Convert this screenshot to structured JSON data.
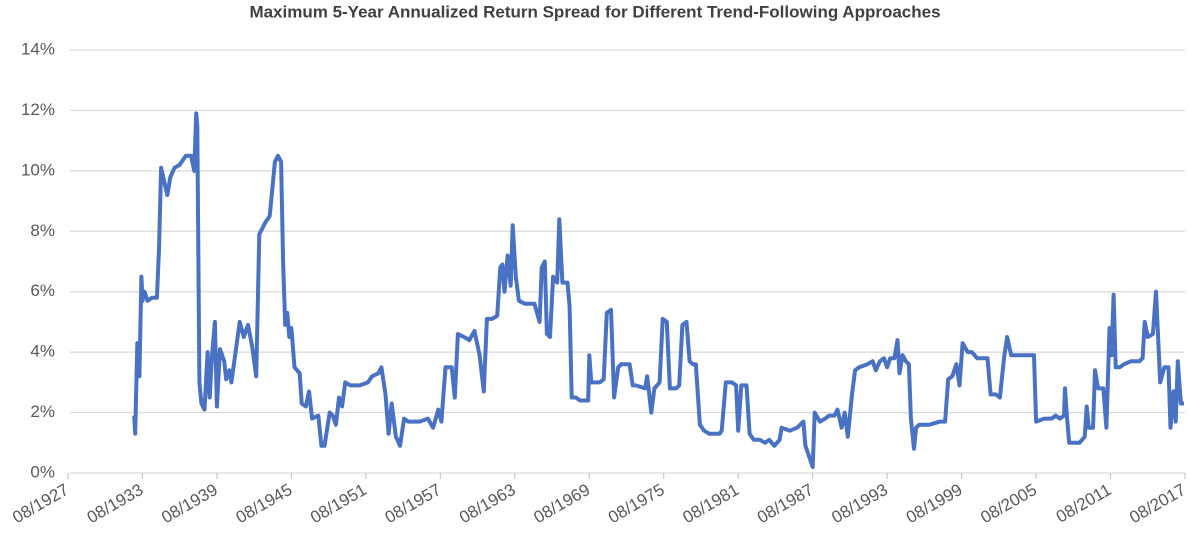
{
  "chart_data": {
    "type": "line",
    "title": "Maximum 5-Year Annualized Return Spread for Different Trend-Following Approaches",
    "color": "#4a72c4",
    "grid": true,
    "x": [
      "12/1932",
      "01/1933",
      "03/1933",
      "05/1933",
      "07/1933",
      "08/1933",
      "10/1933",
      "01/1934",
      "05/1934",
      "10/1934",
      "12/1934",
      "02/1935",
      "04/1935",
      "08/1935",
      "11/1935",
      "03/1936",
      "08/1936",
      "02/1937",
      "07/1937",
      "10/1937",
      "12/1937",
      "01/1938",
      "03/1938",
      "05/1938",
      "08/1938",
      "11/1938",
      "01/1939",
      "03/1939",
      "06/1939",
      "08/1939",
      "11/1939",
      "03/1940",
      "05/1940",
      "08/1940",
      "10/1940",
      "06/1941",
      "10/1941",
      "02/1942",
      "06/1942",
      "10/1942",
      "01/1943",
      "07/1943",
      "11/1943",
      "04/1944",
      "07/1944",
      "10/1944",
      "12/1944",
      "02/1945",
      "04/1945",
      "06/1945",
      "08/1945",
      "11/1945",
      "04/1946",
      "06/1946",
      "10/1946",
      "01/1947",
      "04/1947",
      "10/1947",
      "01/1948",
      "04/1948",
      "09/1948",
      "12/1948",
      "03/1949",
      "06/1949",
      "09/1949",
      "12/1949",
      "05/1950",
      "02/1951",
      "10/1951",
      "02/1952",
      "08/1952",
      "11/1952",
      "03/1953",
      "06/1953",
      "09/1953",
      "01/1954",
      "05/1954",
      "09/1954",
      "01/1955",
      "12/1955",
      "08/1956",
      "01/1957",
      "06/1957",
      "09/1957",
      "01/1958",
      "07/1958",
      "10/1958",
      "01/1959",
      "07/1959",
      "12/1959",
      "05/1960",
      "10/1960",
      "02/1961",
      "05/1961",
      "10/1961",
      "03/1962",
      "06/1962",
      "08/1962",
      "10/1962",
      "01/1963",
      "04/1963",
      "06/1963",
      "09/1963",
      "12/1963",
      "06/1964",
      "03/1965",
      "08/1965",
      "10/1965",
      "01/1966",
      "03/1966",
      "06/1966",
      "09/1966",
      "01/1967",
      "03/1967",
      "06/1967",
      "11/1967",
      "01/1968",
      "03/1968",
      "07/1968",
      "11/1968",
      "07/1969",
      "08/1969",
      "10/1969",
      "06/1970",
      "10/1970",
      "01/1971",
      "05/1971",
      "08/1971",
      "12/1971",
      "03/1972",
      "11/1972",
      "02/1973",
      "05/1973",
      "02/1974",
      "04/1974",
      "08/1974",
      "11/1974",
      "04/1975",
      "07/1975",
      "11/1975",
      "02/1976",
      "08/1976",
      "11/1976",
      "02/1977",
      "06/1977",
      "09/1977",
      "12/1977",
      "03/1978",
      "07/1978",
      "11/1978",
      "04/1979",
      "02/1980",
      "04/1980",
      "08/1980",
      "02/1981",
      "06/1981",
      "08/1981",
      "11/1981",
      "04/1982",
      "07/1982",
      "11/1982",
      "05/1983",
      "10/1983",
      "02/1984",
      "07/1984",
      "12/1984",
      "02/1985",
      "10/1985",
      "05/1986",
      "11/1986",
      "01/1987",
      "05/1987",
      "08/1987",
      "10/1987",
      "03/1988",
      "08/1988",
      "12/1988",
      "05/1989",
      "08/1989",
      "12/1989",
      "03/1990",
      "06/1990",
      "10/1990",
      "01/1991",
      "05/1991",
      "01/1992",
      "06/1992",
      "09/1992",
      "01/1993",
      "05/1993",
      "08/1993",
      "11/1993",
      "03/1994",
      "06/1994",
      "08/1994",
      "11/1994",
      "02/1995",
      "05/1995",
      "07/1995",
      "10/1995",
      "12/1995",
      "03/1996",
      "01/1997",
      "11/1997",
      "04/1998",
      "07/1998",
      "11/1998",
      "03/1999",
      "06/1999",
      "09/1999",
      "02/2000",
      "06/2000",
      "11/2000",
      "06/2001",
      "09/2001",
      "12/2001",
      "05/2002",
      "09/2002",
      "01/2003",
      "04/2003",
      "08/2003",
      "02/2004",
      "09/2004",
      "02/2005",
      "06/2005",
      "08/2005",
      "04/2006",
      "11/2006",
      "03/2007",
      "07/2007",
      "11/2007",
      "12/2007",
      "02/2008",
      "04/2008",
      "02/2009",
      "07/2009",
      "09/2009",
      "11/2009",
      "03/2010",
      "05/2010",
      "08/2010",
      "01/2011",
      "04/2011",
      "07/2011",
      "09/2011",
      "11/2011",
      "01/2012",
      "05/2012",
      "09/2012",
      "04/2013",
      "12/2013",
      "03/2014",
      "05/2014",
      "08/2014",
      "01/2015",
      "04/2015",
      "06/2015",
      "08/2015",
      "12/2015",
      "04/2016",
      "06/2016",
      "09/2016",
      "11/2016",
      "01/2017",
      "04/2017",
      "07/2017"
    ],
    "values": [
      1.9,
      1.3,
      4.3,
      3.2,
      6.5,
      5.7,
      6.0,
      5.7,
      5.8,
      5.8,
      7.4,
      10.1,
      9.8,
      9.2,
      9.8,
      10.1,
      10.2,
      10.5,
      10.5,
      10.0,
      11.9,
      11.5,
      3.0,
      2.3,
      2.1,
      4.0,
      2.5,
      3.8,
      5.0,
      2.2,
      4.1,
      3.7,
      3.1,
      3.4,
      3.0,
      5.0,
      4.5,
      4.9,
      4.2,
      3.2,
      7.9,
      8.3,
      8.5,
      10.3,
      10.5,
      10.3,
      7.0,
      4.9,
      5.3,
      4.5,
      4.8,
      3.5,
      3.3,
      2.3,
      2.2,
      2.7,
      1.8,
      1.9,
      0.9,
      0.9,
      2.0,
      1.9,
      1.6,
      2.5,
      2.2,
      3.0,
      2.9,
      2.9,
      3.0,
      3.2,
      3.3,
      3.5,
      2.6,
      1.3,
      2.3,
      1.2,
      0.9,
      1.8,
      1.7,
      1.7,
      1.8,
      1.5,
      2.1,
      1.7,
      3.5,
      3.5,
      2.5,
      4.6,
      4.5,
      4.4,
      4.7,
      3.9,
      2.7,
      5.1,
      5.1,
      5.2,
      6.8,
      6.9,
      6.0,
      7.2,
      6.2,
      8.2,
      6.5,
      5.7,
      5.6,
      5.6,
      5.0,
      6.8,
      7.0,
      4.6,
      4.5,
      6.5,
      6.3,
      8.4,
      6.3,
      6.3,
      5.5,
      2.5,
      2.5,
      2.4,
      2.4,
      3.9,
      3.0,
      3.0,
      3.1,
      5.3,
      5.4,
      2.5,
      3.5,
      3.6,
      3.6,
      2.9,
      2.9,
      2.8,
      3.2,
      2.0,
      2.8,
      3.0,
      5.1,
      5.0,
      2.8,
      2.8,
      2.9,
      4.9,
      5.0,
      3.7,
      3.6,
      3.6,
      1.6,
      1.4,
      1.3,
      1.3,
      1.4,
      3.0,
      3.0,
      2.9,
      1.4,
      2.9,
      2.9,
      1.3,
      1.1,
      1.1,
      1.0,
      1.1,
      0.9,
      1.1,
      1.5,
      1.4,
      1.5,
      1.7,
      0.9,
      0.5,
      0.2,
      2.0,
      1.7,
      1.8,
      1.9,
      1.9,
      2.1,
      1.5,
      2.0,
      1.2,
      2.6,
      3.4,
      3.5,
      3.6,
      3.7,
      3.4,
      3.7,
      3.8,
      3.5,
      3.8,
      3.8,
      4.4,
      3.3,
      3.9,
      3.7,
      3.6,
      1.8,
      0.8,
      1.5,
      1.6,
      1.6,
      1.7,
      1.7,
      3.1,
      3.2,
      3.6,
      2.9,
      4.3,
      4.0,
      4.0,
      3.8,
      3.8,
      3.8,
      2.6,
      2.6,
      2.5,
      3.8,
      4.5,
      3.9,
      3.9,
      3.9,
      3.9,
      3.9,
      1.7,
      1.8,
      1.8,
      1.9,
      1.8,
      1.9,
      2.8,
      1.8,
      1.0,
      1.0,
      1.2,
      2.2,
      1.5,
      1.5,
      3.4,
      2.8,
      2.8,
      1.5,
      4.8,
      3.9,
      5.9,
      3.5,
      3.5,
      3.6,
      3.7,
      3.7,
      3.8,
      5.0,
      4.5,
      4.6,
      6.0,
      4.5,
      3.0,
      3.5,
      3.5,
      1.5,
      2.7,
      1.7,
      3.7,
      2.3,
      2.3
    ],
    "xlim": [
      "08/1927",
      "08/2017"
    ],
    "xticks": [
      "08/1927",
      "08/1933",
      "08/1939",
      "08/1945",
      "08/1951",
      "08/1957",
      "08/1963",
      "08/1969",
      "08/1975",
      "08/1981",
      "08/1987",
      "08/1993",
      "08/1999",
      "08/2005",
      "08/2011",
      "08/2017"
    ],
    "ylim": [
      0,
      14
    ],
    "yticks": [
      {
        "value": 0,
        "label": "0%"
      },
      {
        "value": 2,
        "label": "2%"
      },
      {
        "value": 4,
        "label": "4%"
      },
      {
        "value": 6,
        "label": "6%"
      },
      {
        "value": 8,
        "label": "8%"
      },
      {
        "value": 10,
        "label": "10%"
      },
      {
        "value": 12,
        "label": "12%"
      },
      {
        "value": 14,
        "label": "14%"
      }
    ]
  }
}
